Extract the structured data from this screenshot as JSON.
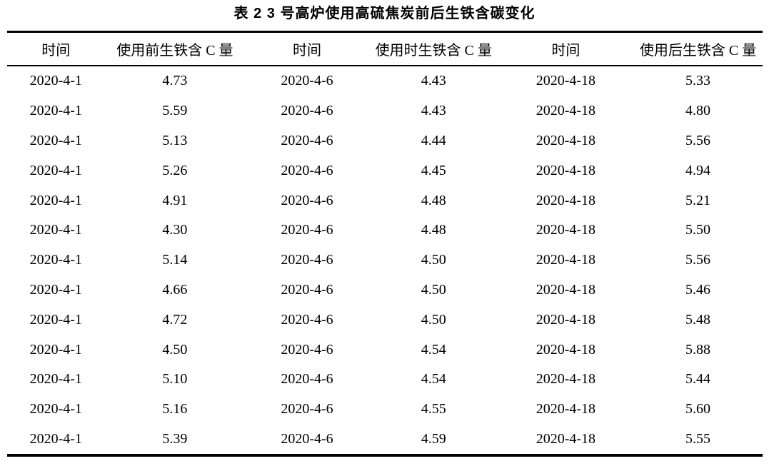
{
  "title": "表 2  3 号高炉使用高硫焦炭前后生铁含碳变化",
  "table": {
    "headers": [
      "时间",
      "使用前生铁含 C 量",
      "时间",
      "使用时生铁含 C 量",
      "时间",
      "使用后生铁含 C 量"
    ],
    "rows": [
      [
        "2020-4-1",
        "4.73",
        "2020-4-6",
        "4.43",
        "2020-4-18",
        "5.33"
      ],
      [
        "2020-4-1",
        "5.59",
        "2020-4-6",
        "4.43",
        "2020-4-18",
        "4.80"
      ],
      [
        "2020-4-1",
        "5.13",
        "2020-4-6",
        "4.44",
        "2020-4-18",
        "5.56"
      ],
      [
        "2020-4-1",
        "5.26",
        "2020-4-6",
        "4.45",
        "2020-4-18",
        "4.94"
      ],
      [
        "2020-4-1",
        "4.91",
        "2020-4-6",
        "4.48",
        "2020-4-18",
        "5.21"
      ],
      [
        "2020-4-1",
        "4.30",
        "2020-4-6",
        "4.48",
        "2020-4-18",
        "5.50"
      ],
      [
        "2020-4-1",
        "5.14",
        "2020-4-6",
        "4.50",
        "2020-4-18",
        "5.56"
      ],
      [
        "2020-4-1",
        "4.66",
        "2020-4-6",
        "4.50",
        "2020-4-18",
        "5.46"
      ],
      [
        "2020-4-1",
        "4.72",
        "2020-4-6",
        "4.50",
        "2020-4-18",
        "5.48"
      ],
      [
        "2020-4-1",
        "4.50",
        "2020-4-6",
        "4.54",
        "2020-4-18",
        "5.88"
      ],
      [
        "2020-4-1",
        "5.10",
        "2020-4-6",
        "4.54",
        "2020-4-18",
        "5.44"
      ],
      [
        "2020-4-1",
        "5.16",
        "2020-4-6",
        "4.55",
        "2020-4-18",
        "5.60"
      ],
      [
        "2020-4-1",
        "5.39",
        "2020-4-6",
        "4.59",
        "2020-4-18",
        "5.55"
      ]
    ]
  },
  "chart_data": {
    "type": "table",
    "title": "表 2  3 号高炉使用高硫焦炭前后生铁含碳变化",
    "columns": [
      "时间",
      "使用前生铁含 C 量",
      "时间",
      "使用时生铁含 C 量",
      "时间",
      "使用后生铁含 C 量"
    ],
    "series": [
      {
        "name": "使用前生铁含 C 量",
        "date": "2020-4-1",
        "values": [
          4.73,
          5.59,
          5.13,
          5.26,
          4.91,
          4.3,
          5.14,
          4.66,
          4.72,
          4.5,
          5.1,
          5.16,
          5.39
        ]
      },
      {
        "name": "使用时生铁含 C 量",
        "date": "2020-4-6",
        "values": [
          4.43,
          4.43,
          4.44,
          4.45,
          4.48,
          4.48,
          4.5,
          4.5,
          4.5,
          4.54,
          4.54,
          4.55,
          4.59
        ]
      },
      {
        "name": "使用后生铁含 C 量",
        "date": "2020-4-18",
        "values": [
          5.33,
          4.8,
          5.56,
          4.94,
          5.21,
          5.5,
          5.56,
          5.46,
          5.48,
          5.88,
          5.44,
          5.6,
          5.55
        ]
      }
    ]
  }
}
